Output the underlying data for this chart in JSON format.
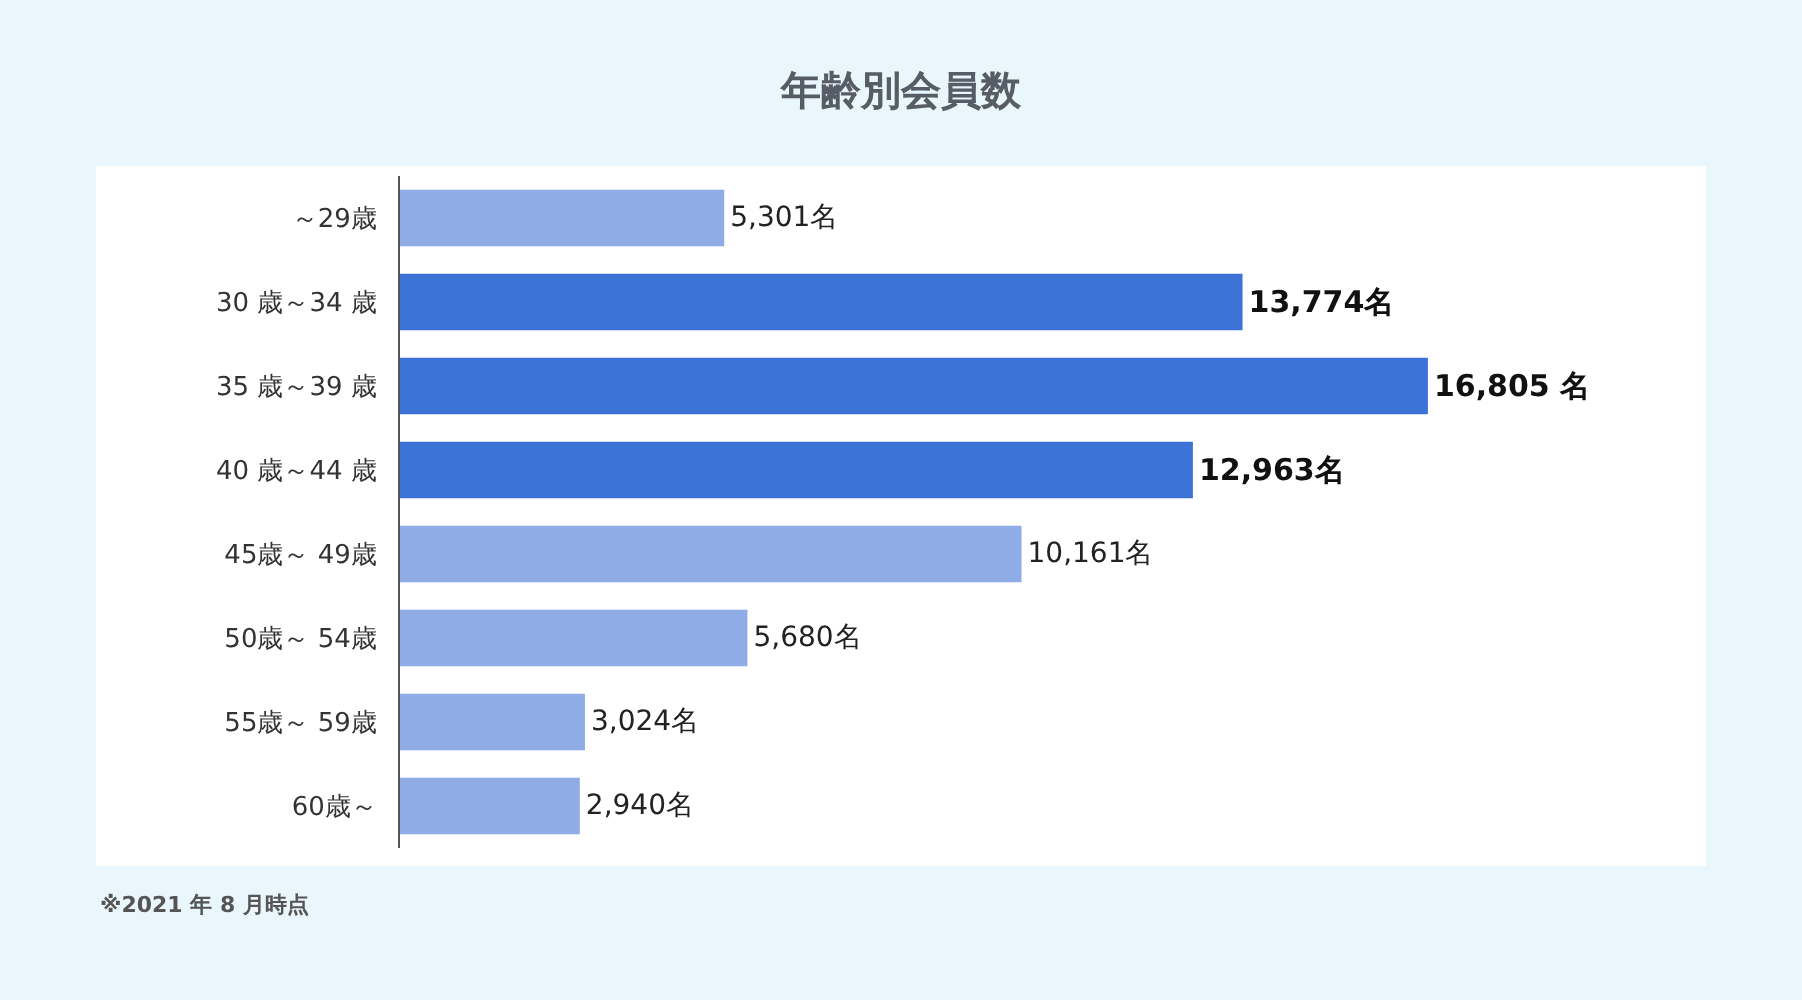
{
  "chart_data": {
    "type": "bar",
    "orientation": "horizontal",
    "title": "年齢別会員数",
    "categories": [
      "～29歳",
      "30 歳～34 歳",
      "35 歳～39 歳",
      "40 歳～44 歳",
      "45歳～ 49歳",
      "50歳～ 54歳",
      "55歳～ 59歳",
      "60歳～"
    ],
    "values": [
      5301,
      13774,
      16805,
      12963,
      10161,
      5680,
      3024,
      2940
    ],
    "colors": [
      "#8facE6",
      "#3d72d6",
      "#3d72d6",
      "#3d72d6",
      "#8facE6",
      "#8facE6",
      "#8facE6",
      "#8facE6"
    ],
    "value_labels": [
      "5,301名",
      "13,774名",
      "16,805 名",
      "12,963名",
      "10,161名",
      "5,680名",
      "3,024名",
      "2,940名"
    ],
    "annotations": [
      "※2021 年 8 月時点"
    ]
  }
}
